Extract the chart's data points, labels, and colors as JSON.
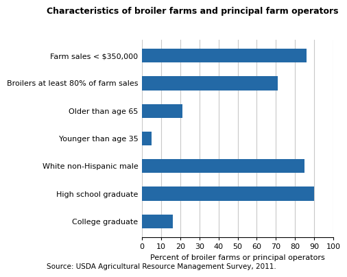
{
  "title": "Characteristics of broiler farms and principal farm operators",
  "categories": [
    "College graduate",
    "High school graduate",
    "White non-Hispanic male",
    "Younger than age 35",
    "Older than age 65",
    "Broilers at least 80% of farm sales",
    "Farm sales < $350,000"
  ],
  "values": [
    16,
    90,
    85,
    5,
    21,
    71,
    86
  ],
  "bar_color": "#2369a6",
  "xlabel": "Percent of broiler farms or principal operators",
  "xlim": [
    0,
    100
  ],
  "xticks": [
    0,
    10,
    20,
    30,
    40,
    50,
    60,
    70,
    80,
    90,
    100
  ],
  "source": "Source: USDA Agricultural Resource Management Survey, 2011.",
  "background_color": "#ffffff",
  "grid_color": "#c8c8c8",
  "title_fontsize": 9,
  "label_fontsize": 8,
  "tick_fontsize": 8,
  "source_fontsize": 7.5
}
